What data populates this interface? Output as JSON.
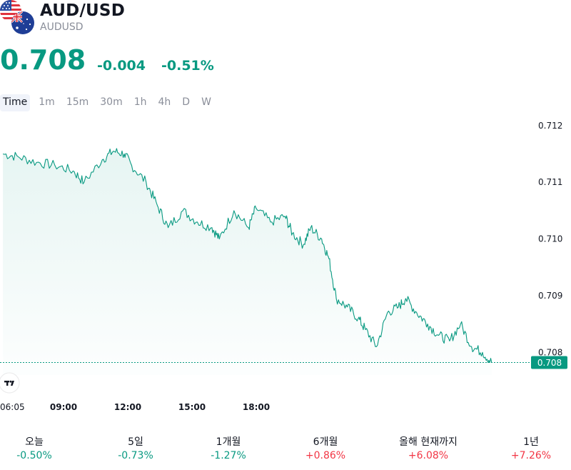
{
  "header": {
    "symbol": "AUD/USD",
    "ticker": "AUDUSD",
    "price": "0.708",
    "change": "-0.004",
    "change_pct": "-0.51%"
  },
  "tabs": [
    {
      "label": "Time",
      "active": true
    },
    {
      "label": "1m",
      "active": false
    },
    {
      "label": "15m",
      "active": false
    },
    {
      "label": "30m",
      "active": false
    },
    {
      "label": "1h",
      "active": false
    },
    {
      "label": "4h",
      "active": false
    },
    {
      "label": "D",
      "active": false
    },
    {
      "label": "W",
      "active": false
    }
  ],
  "chart_data": {
    "type": "area",
    "x_ticks": [
      "06:05",
      "09:00",
      "12:00",
      "15:00",
      "18:00"
    ],
    "y_ticks": [
      0.712,
      0.711,
      0.71,
      0.709,
      0.708
    ],
    "ylim": [
      0.7076,
      0.7122
    ],
    "last_price_label": "0.708",
    "last_price": 0.70782,
    "series": [
      {
        "x": [
          6.08,
          6.5,
          7.0,
          7.5,
          8.0,
          8.3,
          8.8,
          9.1,
          9.4,
          9.6,
          10.0,
          10.3,
          10.6,
          11.0,
          11.4,
          11.8,
          12.0,
          12.4,
          12.8,
          13.0,
          13.4,
          13.8,
          14.0,
          14.3,
          14.5,
          14.8,
          15.0,
          15.2,
          15.5,
          15.8,
          16.0,
          16.3,
          16.6,
          16.9,
          17.1,
          17.4,
          17.7,
          18.0,
          18.3,
          18.6,
          18.9,
          19.2,
          19.45
        ],
        "y": [
          0.7115,
          0.71145,
          0.71135,
          0.7113,
          0.7112,
          0.711,
          0.7114,
          0.71155,
          0.7115,
          0.7113,
          0.711,
          0.7106,
          0.7102,
          0.7105,
          0.7103,
          0.7102,
          0.71,
          0.7105,
          0.7102,
          0.71055,
          0.7103,
          0.7104,
          0.7101,
          0.7099,
          0.7102,
          0.71,
          0.70965,
          0.70895,
          0.7088,
          0.7086,
          0.7084,
          0.7081,
          0.7087,
          0.7088,
          0.70895,
          0.7087,
          0.7085,
          0.7083,
          0.7082,
          0.7085,
          0.7081,
          0.708,
          0.70782
        ]
      }
    ],
    "line_color": "#089981",
    "grid": false
  },
  "performance": [
    {
      "label": "오늘",
      "value": "-0.50%",
      "color": "#089981"
    },
    {
      "label": "5일",
      "value": "-0.73%",
      "color": "#089981"
    },
    {
      "label": "1개월",
      "value": "-1.27%",
      "color": "#089981"
    },
    {
      "label": "6개월",
      "value": "+0.86%",
      "color": "#f23645"
    },
    {
      "label": "올해 현재까지",
      "value": "+6.08%",
      "color": "#f23645"
    },
    {
      "label": "1년",
      "value": "+7.26%",
      "color": "#f23645"
    }
  ]
}
